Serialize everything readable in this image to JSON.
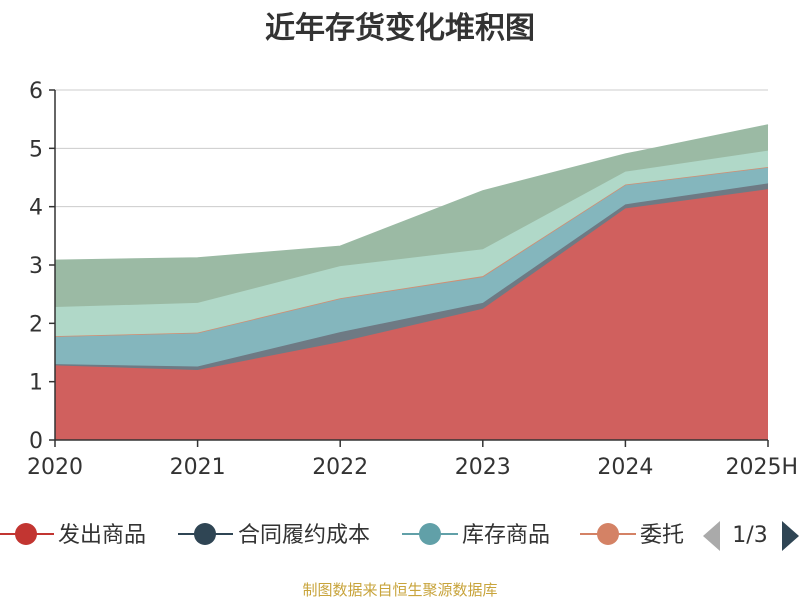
{
  "chart_data": {
    "type": "area",
    "stacked": true,
    "title": "近年存货变化堆积图",
    "ylabel": "",
    "categories": [
      "2020",
      "2021",
      "2022",
      "2023",
      "2024",
      "2025H"
    ],
    "ylim": [
      0,
      6
    ],
    "yticks": [
      0,
      1,
      2,
      3,
      4,
      5,
      6
    ],
    "grid": true,
    "legend_position": "bottom",
    "legend_page": "1/3",
    "series": [
      {
        "name": "发出商品",
        "color": "#d0605e",
        "values": [
          1.28,
          1.2,
          1.68,
          2.25,
          3.97,
          4.3
        ]
      },
      {
        "name": "合同履约成本",
        "color": "#6e7a84",
        "values": [
          0.02,
          0.06,
          0.17,
          0.1,
          0.07,
          0.1
        ]
      },
      {
        "name": "库存商品",
        "color": "#84b6bd",
        "values": [
          0.47,
          0.57,
          0.57,
          0.44,
          0.33,
          0.27
        ]
      },
      {
        "name": "委托",
        "color": "#cf8f74",
        "values": [
          0.01,
          0.01,
          0.01,
          0.02,
          0.01,
          0.01
        ]
      },
      {
        "name": "",
        "color": "#b0d8c8",
        "values": [
          0.5,
          0.51,
          0.55,
          0.46,
          0.22,
          0.28
        ]
      },
      {
        "name": "",
        "color": "#9bbaa4",
        "values": [
          0.8,
          0.77,
          0.34,
          1.0,
          0.3,
          0.44
        ]
      }
    ],
    "legend_visible": [
      {
        "name": "发出商品",
        "color": "#c23531"
      },
      {
        "name": "合同履约成本",
        "color": "#2f4554"
      },
      {
        "name": "库存商品",
        "color": "#61a0a8"
      },
      {
        "name": "委托",
        "color": "#d48265"
      }
    ],
    "source": "制图数据来自恒生聚源数据库"
  }
}
